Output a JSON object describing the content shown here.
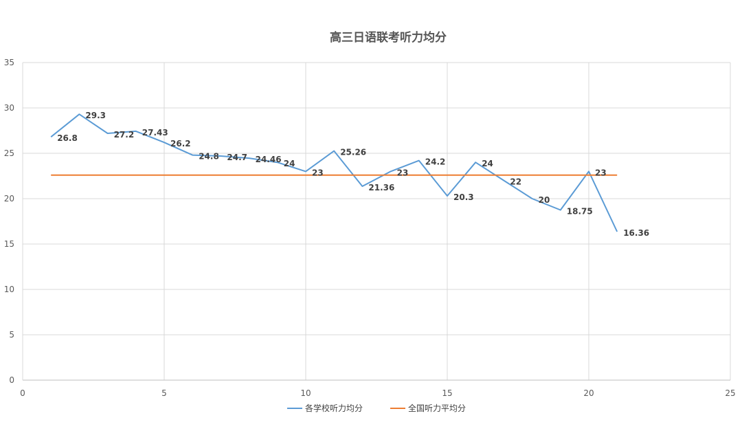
{
  "chart_data": {
    "type": "line",
    "title": "高三日语联考听力均分",
    "xlabel": "",
    "ylabel": "",
    "xlim": [
      0,
      25
    ],
    "ylim": [
      0,
      35
    ],
    "x_ticks": [
      0,
      5,
      10,
      15,
      20,
      25
    ],
    "y_ticks": [
      0,
      5,
      10,
      15,
      20,
      25,
      30,
      35
    ],
    "grid": true,
    "legend_position": "bottom",
    "series": [
      {
        "name": "各学校听力均分",
        "color": "#5B9BD5",
        "x": [
          1,
          2,
          3,
          4,
          5,
          6,
          7,
          8,
          9,
          10,
          11,
          12,
          13,
          14,
          15,
          16,
          17,
          18,
          19,
          20,
          21
        ],
        "values": [
          26.8,
          29.3,
          27.2,
          27.43,
          26.2,
          24.8,
          24.7,
          24.46,
          24,
          23,
          25.26,
          21.36,
          23,
          24.2,
          20.3,
          24,
          22,
          20,
          18.75,
          23,
          16.36
        ],
        "labels": [
          "26.8",
          "29.3",
          "27.2",
          "27.43",
          "26.2",
          "24.8",
          "24.7",
          "24.46",
          "24",
          "23",
          "25.26",
          "21.36",
          "23",
          "24.2",
          "20.3",
          "24",
          "22",
          "20",
          "18.75",
          "23",
          "16.36"
        ]
      },
      {
        "name": "全国听力平均分",
        "color": "#ED7D31",
        "x": [
          1,
          21
        ],
        "values": [
          22.6,
          22.6
        ]
      }
    ]
  }
}
